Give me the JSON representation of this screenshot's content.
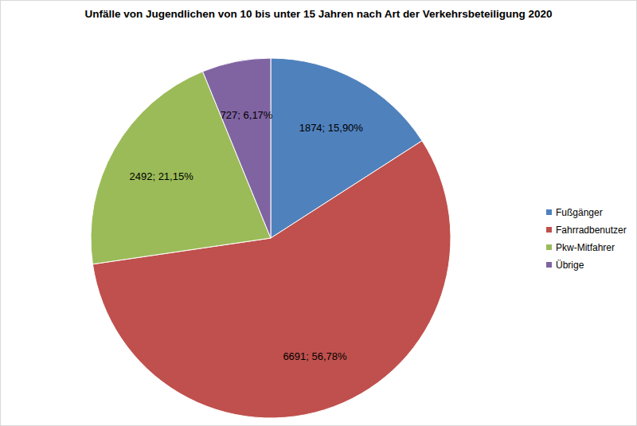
{
  "chart_data": {
    "type": "pie",
    "title": "Unfälle von Jugendlichen von 10 bis unter 15 Jahren nach Art der Verkehrsbeteiligung 2020",
    "categories": [
      "Fußgänger",
      "Fahrradbenutzer",
      "Pkw-Mitfahrer",
      "Übrige"
    ],
    "values": [
      1874,
      6691,
      2492,
      727
    ],
    "value_labels": [
      "1874; 15,90%",
      "6691; 56,78%",
      "2492; 21,15%",
      "727; 6,17%"
    ],
    "colors": [
      "#4f81bd",
      "#c0504d",
      "#9bbb59",
      "#8064a2"
    ],
    "data_labels": true,
    "legend": "right"
  }
}
